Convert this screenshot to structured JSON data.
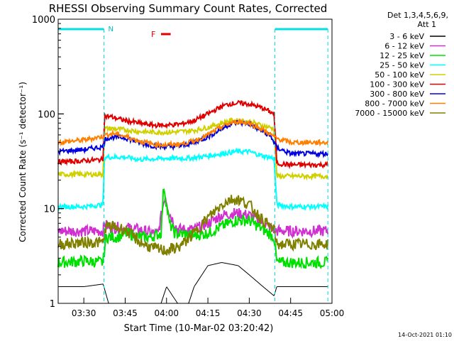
{
  "chart_data": {
    "type": "line",
    "title": "RHESSI Observing Summary Count Rates, Corrected",
    "xlabel": "Start Time (10-Mar-02 03:20:42)",
    "ylabel": "Corrected Count Rate (s⁻¹ detector⁻¹)",
    "x_unit": "minutes after 03:20",
    "xlim": [
      0.7,
      100
    ],
    "x_ticks": [
      10,
      25,
      40,
      55,
      70,
      85,
      100
    ],
    "x_tick_labels": [
      "03:30",
      "03:45",
      "04:00",
      "04:15",
      "04:30",
      "04:45",
      "05:00"
    ],
    "y_scale": "log",
    "ylim": [
      1,
      1000
    ],
    "y_ticks": [
      1,
      10,
      100,
      1000
    ],
    "y_tick_labels": [
      "1",
      "10",
      "100",
      "1000"
    ],
    "legend": {
      "placement": "top-right",
      "header": [
        "Det 1,3,4,5,6,9,",
        "Att 1"
      ]
    },
    "annotations": {
      "night_label": "N",
      "flare_label": "F",
      "night_intervals": [
        [
          0.7,
          17.3
        ],
        [
          79.3,
          98.5
        ]
      ],
      "flare_interval": [
        38.0,
        41.5
      ]
    },
    "footer_date": "14-Oct-2021 01:10",
    "series": [
      {
        "name": "3 - 6 keV",
        "color": "#000000",
        "x": [
          0.7,
          10,
          17,
          19,
          25,
          33,
          38,
          40,
          44,
          48,
          50,
          55,
          60,
          63,
          66,
          70,
          75,
          79,
          80,
          85,
          92,
          98.5
        ],
        "y": [
          1.5,
          1.5,
          1.6,
          1.0,
          1.0,
          1.0,
          1.0,
          1.5,
          1.0,
          1.0,
          1.5,
          2.5,
          2.7,
          2.6,
          2.5,
          2.0,
          1.5,
          1.2,
          1.5,
          1.5,
          1.5,
          1.5
        ]
      },
      {
        "name": "6 - 12 keV",
        "color": "#d030d0",
        "x": [
          0.7,
          10,
          17,
          17.5,
          19,
          25,
          30,
          35,
          37,
          38.5,
          39.5,
          41,
          44,
          50,
          55,
          60,
          65,
          70,
          75,
          79,
          80,
          90,
          98.5
        ],
        "y": [
          5.8,
          5.8,
          5.8,
          7.0,
          6.3,
          6.3,
          6.0,
          5.5,
          5.5,
          10,
          14,
          9,
          6.0,
          6.0,
          7.0,
          8.5,
          9.0,
          8.5,
          7.0,
          6.0,
          5.8,
          5.8,
          5.8
        ]
      },
      {
        "name": "12 - 25 keV",
        "color": "#00e000",
        "x": [
          0.7,
          10,
          17,
          18,
          22,
          26,
          30,
          34,
          38,
          39,
          40,
          41,
          43,
          50,
          55,
          60,
          65,
          70,
          75,
          79,
          80,
          85,
          92,
          98.5
        ],
        "y": [
          2.7,
          2.8,
          2.7,
          5.0,
          5.0,
          5.5,
          5.0,
          5.0,
          5.5,
          18,
          11,
          7,
          5.5,
          5.2,
          5.5,
          6.5,
          7.5,
          7.5,
          6.0,
          5.0,
          2.7,
          2.7,
          2.7,
          2.7
        ]
      },
      {
        "name": "25 - 50 keV",
        "color": "#00ffff",
        "x": [
          0.7,
          10,
          17,
          17.5,
          25,
          30,
          40,
          48,
          55,
          60,
          65,
          70,
          75,
          79,
          80,
          85,
          90,
          98.5
        ],
        "y": [
          10.5,
          10.5,
          11,
          35,
          35,
          33,
          34,
          34,
          36,
          38,
          40,
          40,
          36,
          34,
          11,
          10.5,
          10.5,
          10.5
        ]
      },
      {
        "name": "50 - 100 keV",
        "color": "#d0d000",
        "x": [
          0.7,
          10,
          17,
          17.5,
          20,
          25,
          30,
          35,
          40,
          45,
          50,
          55,
          60,
          63,
          66,
          70,
          75,
          79,
          80,
          85,
          90,
          98.5
        ],
        "y": [
          23,
          23,
          23,
          70,
          70,
          68,
          65,
          64,
          64,
          65,
          67,
          72,
          80,
          85,
          85,
          83,
          75,
          70,
          22,
          22,
          22,
          22
        ]
      },
      {
        "name": "100 - 300 keV",
        "color": "#e00000",
        "x": [
          0.7,
          10,
          17,
          17.5,
          20,
          25,
          30,
          35,
          40,
          45,
          50,
          55,
          60,
          63,
          66,
          70,
          75,
          79,
          80,
          85,
          90,
          98.5
        ],
        "y": [
          31,
          32,
          33,
          95,
          93,
          85,
          80,
          76,
          76,
          78,
          85,
          100,
          120,
          128,
          130,
          127,
          115,
          100,
          30,
          29,
          29,
          29
        ]
      },
      {
        "name": "300 - 800 keV",
        "color": "#0000e0",
        "x": [
          0.7,
          10,
          17,
          18,
          21,
          25,
          30,
          35,
          40,
          45,
          50,
          55,
          60,
          63,
          66,
          70,
          75,
          78,
          80,
          85,
          90,
          98.5
        ],
        "y": [
          40,
          42,
          45,
          55,
          57,
          56,
          50,
          46,
          45,
          46,
          50,
          57,
          70,
          78,
          82,
          78,
          65,
          57,
          44,
          38,
          38,
          38
        ]
      },
      {
        "name": "800 - 7000 keV",
        "color": "#ff7f00",
        "x": [
          0.7,
          10,
          17,
          18,
          21,
          25,
          30,
          35,
          40,
          45,
          50,
          55,
          60,
          63,
          66,
          70,
          75,
          78,
          80,
          85,
          90,
          98.5
        ],
        "y": [
          50,
          53,
          58,
          60,
          62,
          58,
          52,
          48,
          47,
          48,
          52,
          60,
          73,
          80,
          83,
          80,
          68,
          60,
          55,
          50,
          50,
          50
        ]
      },
      {
        "name": "7000 - 15000 keV",
        "color": "#808000",
        "x": [
          0.7,
          10,
          17,
          18,
          20,
          25,
          30,
          35,
          40,
          45,
          50,
          55,
          60,
          63,
          66,
          70,
          75,
          79,
          80,
          85,
          90,
          98.5
        ],
        "y": [
          4.2,
          4.4,
          4.4,
          6.5,
          6.5,
          6.0,
          4.5,
          3.8,
          3.6,
          4.0,
          5.5,
          8,
          11,
          12.5,
          12.5,
          11,
          7.5,
          6.0,
          4.2,
          4.2,
          4.2,
          4.2
        ]
      }
    ]
  }
}
